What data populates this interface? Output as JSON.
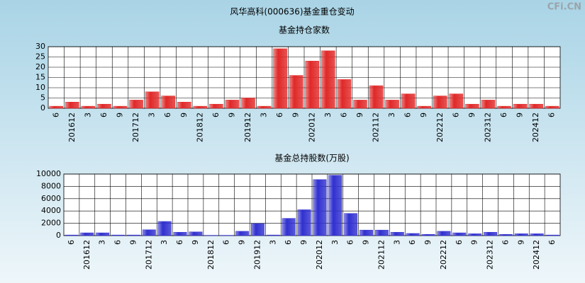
{
  "title": "风华高科(000636)基金重仓变动",
  "watermark": "CFi.CN",
  "chart_data": [
    {
      "type": "bar",
      "title": "基金持仓家数",
      "categories": [
        "6",
        "201612",
        "3",
        "6",
        "9",
        "201712",
        "3",
        "6",
        "9",
        "201812",
        "6",
        "9",
        "201912",
        "3",
        "6",
        "9",
        "202012",
        "3",
        "6",
        "9",
        "202112",
        "3",
        "6",
        "9",
        "202212",
        "6",
        "9",
        "202312",
        "6",
        "9",
        "202412",
        "6"
      ],
      "values": [
        1,
        3,
        1,
        2,
        1,
        4,
        8,
        6,
        3,
        1,
        2,
        4,
        5,
        1,
        29,
        16,
        23,
        28,
        14,
        4,
        11,
        4,
        7,
        1,
        6,
        7,
        2,
        4,
        1,
        2,
        2,
        1
      ],
      "color": "#e02828",
      "ylim": [
        0,
        30
      ],
      "yticks": [
        0,
        5,
        10,
        15,
        20,
        25,
        30
      ],
      "grid": true
    },
    {
      "type": "bar",
      "title": "基金总持股数(万股)",
      "categories": [
        "6",
        "201612",
        "3",
        "6",
        "9",
        "201712",
        "3",
        "6",
        "9",
        "201812",
        "6",
        "9",
        "201912",
        "3",
        "6",
        "9",
        "202012",
        "3",
        "6",
        "9",
        "202112",
        "3",
        "6",
        "9",
        "202212",
        "6",
        "9",
        "202312",
        "6",
        "9",
        "202412",
        "6"
      ],
      "values": [
        100,
        450,
        450,
        100,
        100,
        950,
        2300,
        550,
        600,
        50,
        50,
        700,
        1950,
        100,
        2800,
        4200,
        9100,
        9800,
        3600,
        900,
        900,
        550,
        350,
        200,
        700,
        450,
        300,
        550,
        200,
        300,
        300,
        100
      ],
      "color": "#3030d0",
      "ylim": [
        0,
        10000
      ],
      "yticks": [
        0,
        2000,
        4000,
        6000,
        8000,
        10000
      ],
      "grid": true
    }
  ]
}
